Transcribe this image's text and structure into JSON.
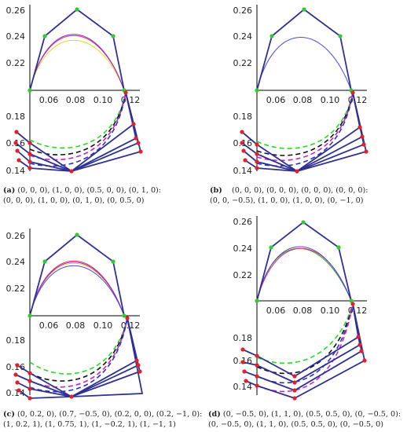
{
  "colors": {
    "polygon": "#2e3192",
    "control_point_top": "#2ecc2e",
    "control_point_bottom": "#e0202a",
    "curve_purple": "#8a2bd6",
    "curve_red": "#e8305a",
    "curve_yellow": "#e8d22a",
    "curve_blue": "#4a4ae0",
    "curve_green": "#2aa02a",
    "dash_green": "#22dd22",
    "dash_black": "#111111",
    "dash_magenta": "#d020d0",
    "dash_blue": "#3030c0"
  },
  "axis": {
    "y_ticks": [
      "0.26",
      "0.24",
      "0.22",
      "0.18",
      "0.16",
      "0.14"
    ],
    "x_ticks": [
      "0.06",
      "0.08",
      "0.10",
      "0.12"
    ]
  },
  "panels": [
    {
      "id": "a",
      "label": "(a)",
      "caption_line1": "(0, 0, 0), (1, 0, 0), (0.5, 0, 0), (0, 1, 0):",
      "caption_line2": "(0, 0, 0), (1, 0, 0), (0, 1, 0), (0, 0.5, 0)"
    },
    {
      "id": "b",
      "label": "(b)",
      "caption_line1": "(0, 0, 0), (0, 0, 0), (0, 0, 0), (0, 0, 0):",
      "caption_line2": "(0, 0, −0.5), (1, 0, 0), (1, 0, 0), (0, −1, 0)"
    },
    {
      "id": "c",
      "label": "(c)",
      "caption_line1": "(0, 0.2, 0), (0.7, −0.5, 0), (0.2, 0, 0), (0.2, −1, 0):",
      "caption_line2": "(1, 0.2, 1), (1, 0.75, 1), (1, −0.2, 1), (1, −1, 1)"
    },
    {
      "id": "d",
      "label": "(d)",
      "caption_line1": "(0, −0.5, 0), (1, 1, 0), (0.5, 0.5, 0), (0, −0.5, 0):",
      "caption_line2": "(0, −0.5, 0), (1, 1, 0), (0.5, 0.5, 0), (0, −0.5, 0)"
    }
  ]
}
